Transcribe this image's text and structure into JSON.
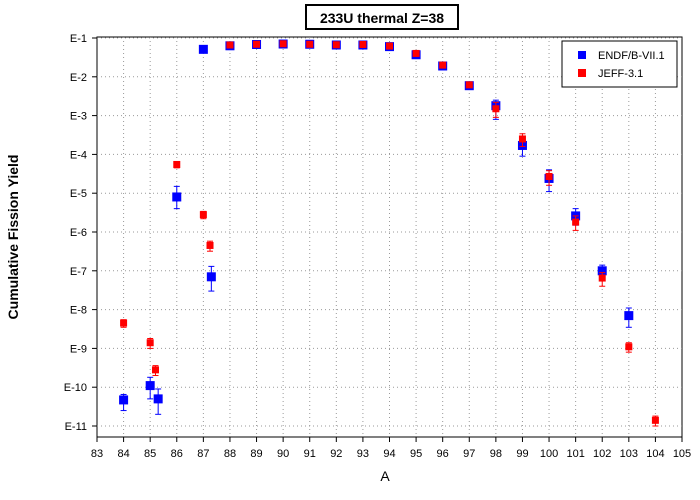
{
  "chart_data": {
    "type": "scatter",
    "title": "233U thermal Z=38",
    "xlabel": "A",
    "ylabel": "Cumulative Fission Yield",
    "xlim": [
      83,
      105
    ],
    "ylim": [
      1e-11,
      0.1
    ],
    "yscale": "log",
    "grid": true,
    "legend": "top-right",
    "x_ticks": [
      "83",
      "84",
      "85",
      "86",
      "87",
      "88",
      "89",
      "90",
      "91",
      "92",
      "93",
      "94",
      "95",
      "96",
      "97",
      "98",
      "99",
      "100",
      "101",
      "102",
      "103",
      "104",
      "105"
    ],
    "y_ticks": [
      "E-1",
      "E-2",
      "E-3",
      "E-4",
      "E-5",
      "E-6",
      "E-7",
      "E-8",
      "E-9",
      "E-10",
      "E-11"
    ],
    "series": [
      {
        "name": "ENDF/B-VII.1",
        "color": "#0000ff",
        "marker": "square",
        "points": [
          {
            "x": 84.0,
            "y": 4.7e-11,
            "ylo": 2.5e-11,
            "yhi": 6.5e-11
          },
          {
            "x": 85.0,
            "y": 1.1e-10,
            "ylo": 5e-11,
            "yhi": 1.8e-10
          },
          {
            "x": 85.3,
            "y": 5e-11,
            "ylo": 2e-11,
            "yhi": 9e-11
          },
          {
            "x": 86.0,
            "y": 8e-06,
            "ylo": 4e-06,
            "yhi": 1.5e-05
          },
          {
            "x": 87.3,
            "y": 7e-08,
            "ylo": 3e-08,
            "yhi": 1.3e-07
          },
          {
            "x": 87.0,
            "y": 0.051
          },
          {
            "x": 88.0,
            "y": 0.063
          },
          {
            "x": 89.0,
            "y": 0.068
          },
          {
            "x": 90.0,
            "y": 0.07
          },
          {
            "x": 91.0,
            "y": 0.069
          },
          {
            "x": 92.0,
            "y": 0.066
          },
          {
            "x": 93.0,
            "y": 0.066,
            "ylo": 0.055,
            "yhi": 0.077
          },
          {
            "x": 94.0,
            "y": 0.06,
            "ylo": 0.05,
            "yhi": 0.07
          },
          {
            "x": 95.0,
            "y": 0.037,
            "ylo": 0.03,
            "yhi": 0.045
          },
          {
            "x": 96.0,
            "y": 0.019,
            "ylo": 0.016,
            "yhi": 0.022
          },
          {
            "x": 97.0,
            "y": 0.0059,
            "ylo": 0.005,
            "yhi": 0.0068
          },
          {
            "x": 98.0,
            "y": 0.0018,
            "ylo": 0.0008,
            "yhi": 0.0025
          },
          {
            "x": 99.0,
            "y": 0.00017,
            "ylo": 9e-05,
            "yhi": 0.00025
          },
          {
            "x": 100.0,
            "y": 2.4e-05,
            "ylo": 1.1e-05,
            "yhi": 4e-05
          },
          {
            "x": 101.0,
            "y": 2.6e-06,
            "ylo": 1.5e-06,
            "yhi": 4e-06
          },
          {
            "x": 102.0,
            "y": 1e-07,
            "ylo": 7e-08,
            "yhi": 1.4e-07
          },
          {
            "x": 103.0,
            "y": 7e-09,
            "ylo": 3.5e-09,
            "yhi": 1.1e-08
          }
        ]
      },
      {
        "name": "JEFF-3.1",
        "color": "#ff0000",
        "marker": "square",
        "points": [
          {
            "x": 84.0,
            "y": 4.5e-09,
            "ylo": 3.5e-09,
            "yhi": 5.5e-09
          },
          {
            "x": 85.0,
            "y": 1.4e-09,
            "ylo": 1e-09,
            "yhi": 1.8e-09
          },
          {
            "x": 85.2,
            "y": 2.8e-10,
            "ylo": 2e-10,
            "yhi": 3.6e-10
          },
          {
            "x": 86.0,
            "y": 5.5e-05,
            "ylo": 4.5e-05,
            "yhi": 6.5e-05
          },
          {
            "x": 87.0,
            "y": 2.8e-06,
            "ylo": 2.2e-06,
            "yhi": 3.4e-06
          },
          {
            "x": 87.25,
            "y": 4.5e-07,
            "ylo": 3.2e-07,
            "yhi": 5.8e-07
          },
          {
            "x": 88.0,
            "y": 0.066
          },
          {
            "x": 89.0,
            "y": 0.069
          },
          {
            "x": 90.0,
            "y": 0.071
          },
          {
            "x": 91.0,
            "y": 0.069
          },
          {
            "x": 92.0,
            "y": 0.067
          },
          {
            "x": 93.0,
            "y": 0.068
          },
          {
            "x": 94.0,
            "y": 0.062
          },
          {
            "x": 95.0,
            "y": 0.04
          },
          {
            "x": 96.0,
            "y": 0.02
          },
          {
            "x": 97.0,
            "y": 0.0062
          },
          {
            "x": 98.0,
            "y": 0.0015,
            "ylo": 0.0009,
            "yhi": 0.0022
          },
          {
            "x": 99.0,
            "y": 0.00025,
            "ylo": 0.00016,
            "yhi": 0.00034
          },
          {
            "x": 100.0,
            "y": 2.7e-05,
            "ylo": 1.6e-05,
            "yhi": 3.8e-05
          },
          {
            "x": 101.0,
            "y": 1.8e-06,
            "ylo": 1.1e-06,
            "yhi": 2.6e-06
          },
          {
            "x": 102.0,
            "y": 6.5e-08,
            "ylo": 4e-08,
            "yhi": 9e-08
          },
          {
            "x": 103.0,
            "y": 1.1e-09,
            "ylo": 8e-10,
            "yhi": 1.4e-09
          },
          {
            "x": 104.0,
            "y": 1.4e-11,
            "ylo": 1e-11,
            "yhi": 1.8e-11
          }
        ]
      }
    ]
  }
}
